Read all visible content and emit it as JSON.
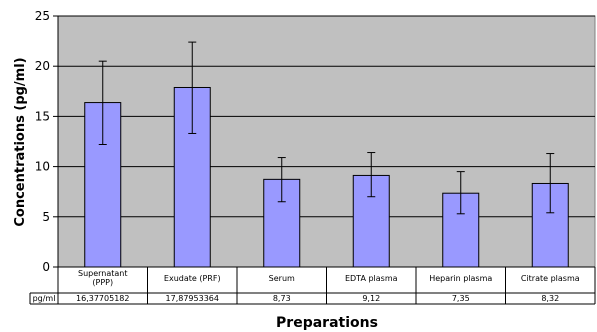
{
  "chart_data": {
    "type": "bar",
    "xlabel": "Preparations",
    "ylabel": "Concentrations (pg/ml)",
    "ylim": [
      0,
      25
    ],
    "yticks": [
      0,
      5,
      10,
      15,
      20,
      25
    ],
    "grid": true,
    "categories": [
      [
        "Supernatant",
        "(PPP)"
      ],
      [
        "Exudate (PRF)"
      ],
      [
        "Serum"
      ],
      [
        "EDTA plasma"
      ],
      [
        "Heparin plasma"
      ],
      [
        "Citrate plasma"
      ]
    ],
    "values": [
      16.37705182,
      17.87953364,
      8.73,
      9.12,
      7.35,
      8.32
    ],
    "error_low": [
      12.2,
      13.3,
      6.5,
      7.0,
      5.3,
      5.4
    ],
    "error_high": [
      20.5,
      22.4,
      10.9,
      11.4,
      9.5,
      11.3
    ],
    "table_row_label": "pg/ml",
    "table_values": [
      "16,37705182",
      "17,87953364",
      "8,73",
      "9,12",
      "7,35",
      "8,32"
    ],
    "colors": {
      "plot_bg": "#c0c0c0",
      "bar_fill": "#9999ff",
      "bar_stroke": "#000000",
      "grid": "#000000"
    }
  }
}
